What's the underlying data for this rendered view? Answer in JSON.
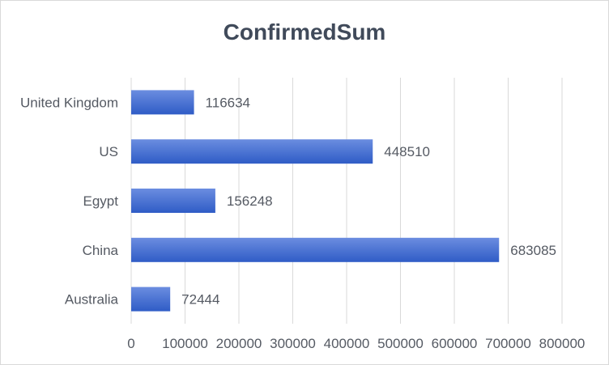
{
  "chart_data": {
    "type": "bar",
    "orientation": "horizontal",
    "title": "ConfirmedSum",
    "categories": [
      "United Kingdom",
      "US",
      "Egypt",
      "China",
      "Australia"
    ],
    "values": [
      116634,
      448510,
      156248,
      683085,
      72444
    ],
    "xlim": [
      0,
      800000
    ],
    "xticks": [
      "0",
      "100000",
      "200000",
      "300000",
      "400000",
      "500000",
      "600000",
      "700000",
      "800000"
    ],
    "grid": true,
    "legend": "none",
    "bar_color_top": "#6b8de0",
    "bar_color_bottom": "#2f5cc6",
    "grid_color": "#d9d9d9"
  }
}
